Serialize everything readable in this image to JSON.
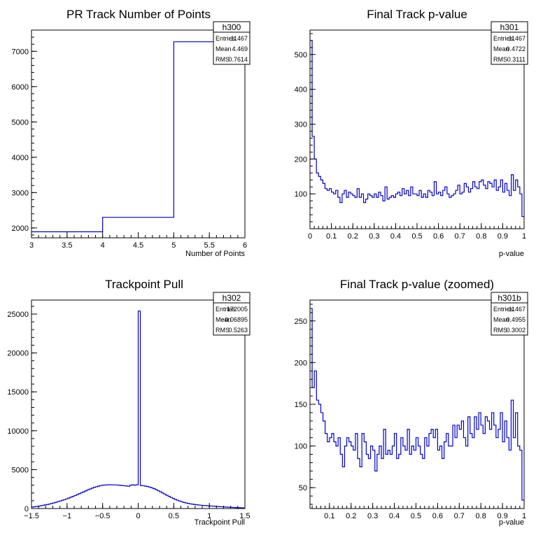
{
  "chart_data": [
    {
      "type": "histogram",
      "title": "PR Track Number of Points",
      "xlabel": "Number of Points",
      "ylabel": "",
      "xlim": [
        3,
        6
      ],
      "ylim": [
        1720,
        7600
      ],
      "xticks": [
        3,
        3.5,
        4,
        4.5,
        5,
        5.5,
        6
      ],
      "xtick_labels": [
        "3",
        "3.5",
        "4",
        "4.5",
        "5",
        "5.5",
        "6"
      ],
      "yticks": [
        2000,
        3000,
        4000,
        5000,
        6000,
        7000
      ],
      "ytick_labels": [
        "2000",
        "3000",
        "4000",
        "5000",
        "6000",
        "7000"
      ],
      "bin_edges": [
        3,
        4,
        5,
        6
      ],
      "values": [
        1890,
        2300,
        7270
      ],
      "stats": {
        "name": "h300",
        "entries": "11467",
        "mean": "4.469",
        "rms": "0.7614"
      },
      "stat_labels": {
        "entries": "Entries",
        "mean": "Mean",
        "rms": "RMS"
      },
      "color": "#0000cc"
    },
    {
      "type": "histogram",
      "title": "Final Track p-value",
      "xlabel": "p-value",
      "ylabel": "",
      "xlim": [
        0,
        1
      ],
      "ylim": [
        0,
        570
      ],
      "xticks": [
        0,
        0.1,
        0.2,
        0.3,
        0.4,
        0.5,
        0.6,
        0.7,
        0.8,
        0.9,
        1
      ],
      "xtick_labels": [
        "0",
        "0.1",
        "0.2",
        "0.3",
        "0.4",
        "0.5",
        "0.6",
        "0.7",
        "0.8",
        "0.9",
        "1"
      ],
      "yticks": [
        100,
        200,
        300,
        400,
        500
      ],
      "ytick_labels": [
        "100",
        "200",
        "300",
        "400",
        "500"
      ],
      "bin_range": [
        0,
        1
      ],
      "values": [
        540,
        265,
        200,
        160,
        150,
        140,
        130,
        115,
        110,
        115,
        105,
        100,
        110,
        90,
        75,
        100,
        110,
        90,
        105,
        100,
        95,
        90,
        115,
        90,
        100,
        75,
        85,
        100,
        95,
        90,
        100,
        90,
        105,
        95,
        80,
        120,
        85,
        90,
        95,
        90,
        100,
        105,
        95,
        115,
        100,
        110,
        95,
        120,
        100,
        100,
        95,
        110,
        90,
        100,
        90,
        110,
        105,
        95,
        135,
        100,
        105,
        95,
        110,
        120,
        100,
        90,
        95,
        100,
        110,
        125,
        100,
        105,
        130,
        120,
        105,
        115,
        135,
        120,
        115,
        135,
        140,
        125,
        115,
        135,
        130,
        120,
        140,
        110,
        120,
        140,
        105,
        130,
        110,
        95,
        155,
        110,
        140,
        120,
        100,
        35
      ],
      "stats": {
        "name": "h301",
        "entries": "11467",
        "mean": "0.4722",
        "rms": "0.3111"
      },
      "stat_labels": {
        "entries": "Entries",
        "mean": "Mean",
        "rms": "RMS"
      },
      "color": "#0000cc"
    },
    {
      "type": "histogram",
      "title": "Trackpoint Pull",
      "xlabel": "Trackpoint Pull",
      "ylabel": "",
      "xlim": [
        -1.5,
        1.5
      ],
      "ylim": [
        0,
        26800
      ],
      "xticks": [
        -1.5,
        -1,
        -0.5,
        0,
        0.5,
        1,
        1.5
      ],
      "xtick_labels": [
        "−1.5",
        "−1",
        "−0.5",
        "0",
        "0.5",
        "1",
        "1.5"
      ],
      "yticks": [
        0,
        5000,
        10000,
        15000,
        20000,
        25000
      ],
      "ytick_labels": [
        "0",
        "5000",
        "10000",
        "15000",
        "20000",
        "25000"
      ],
      "bin_range": [
        -1.5,
        1.5
      ],
      "values": [
        180,
        230,
        270,
        310,
        360,
        410,
        470,
        520,
        580,
        650,
        720,
        800,
        880,
        960,
        1050,
        1140,
        1240,
        1340,
        1450,
        1560,
        1670,
        1790,
        1910,
        2030,
        2150,
        2270,
        2400,
        2510,
        2620,
        2720,
        2800,
        2880,
        2950,
        3000,
        3030,
        3050,
        3060,
        3050,
        3040,
        3030,
        3020,
        2990,
        2960,
        2930,
        2900,
        2860,
        3000,
        3050,
        3000,
        3050,
        25400,
        2960,
        2930,
        2880,
        2820,
        2750,
        2660,
        2550,
        2430,
        2290,
        2150,
        2000,
        1850,
        1700,
        1560,
        1420,
        1290,
        1170,
        1060,
        960,
        870,
        790,
        720,
        660,
        600,
        560,
        520,
        480,
        450,
        420,
        400,
        380,
        360,
        340,
        320,
        300,
        280,
        260,
        240,
        220,
        200,
        185,
        170,
        155,
        140,
        125,
        110,
        100,
        90,
        80
      ],
      "stats": {
        "name": "h302",
        "entries": "172005",
        "mean": "−0.06895",
        "rms": "0.5263"
      },
      "stat_labels": {
        "entries": "Entries",
        "mean": "Mean",
        "rms": "RMS"
      },
      "color": "#0000cc"
    },
    {
      "type": "histogram",
      "title": "Final Track p-value (zoomed)",
      "xlabel": "p-value",
      "ylabel": "",
      "xlim": [
        0.01,
        1
      ],
      "ylim": [
        25,
        275
      ],
      "xticks": [
        0.1,
        0.2,
        0.3,
        0.4,
        0.5,
        0.6,
        0.7,
        0.8,
        0.9,
        1
      ],
      "xtick_labels": [
        "0.1",
        "0.2",
        "0.3",
        "0.4",
        "0.5",
        "0.6",
        "0.7",
        "0.8",
        "0.9",
        "1"
      ],
      "yticks": [
        50,
        100,
        150,
        200,
        250
      ],
      "ytick_labels": [
        "50",
        "100",
        "150",
        "200",
        "250"
      ],
      "bin_range": [
        0.01,
        1
      ],
      "values": [
        265,
        170,
        190,
        155,
        150,
        140,
        130,
        115,
        105,
        110,
        115,
        105,
        100,
        110,
        90,
        75,
        100,
        110,
        105,
        100,
        95,
        115,
        85,
        75,
        115,
        105,
        90,
        85,
        100,
        95,
        70,
        90,
        100,
        85,
        120,
        90,
        95,
        90,
        100,
        115,
        85,
        90,
        110,
        100,
        95,
        120,
        90,
        100,
        95,
        110,
        100,
        90,
        85,
        110,
        100,
        115,
        120,
        110,
        120,
        95,
        100,
        85,
        105,
        115,
        100,
        100,
        125,
        110,
        125,
        120,
        130,
        110,
        100,
        135,
        115,
        110,
        135,
        120,
        140,
        125,
        115,
        135,
        130,
        120,
        140,
        125,
        110,
        120,
        140,
        105,
        130,
        110,
        95,
        155,
        110,
        140,
        100,
        95,
        35
      ],
      "stats": {
        "name": "h301b",
        "entries": "11467",
        "mean": "0.4955",
        "rms": "0.3002"
      },
      "stat_labels": {
        "entries": "Entries",
        "mean": "Mean",
        "rms": "RMS"
      },
      "color": "#0000cc"
    }
  ]
}
